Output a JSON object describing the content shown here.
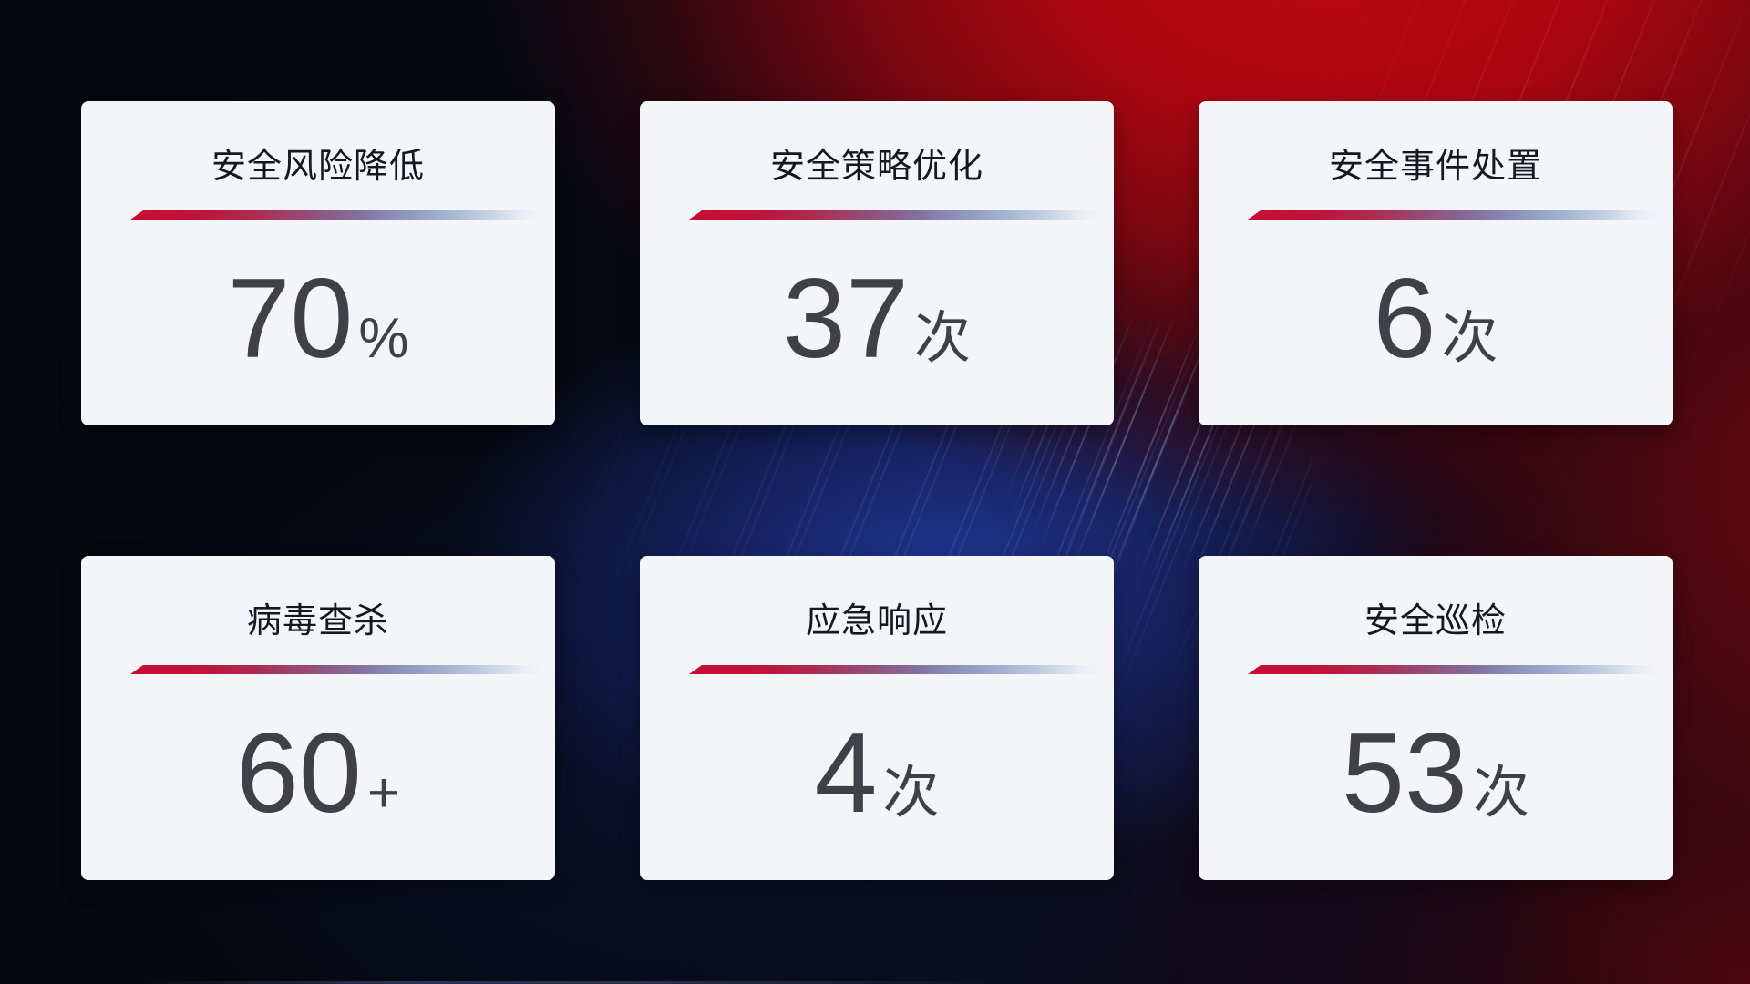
{
  "dashboard": {
    "cards": [
      {
        "title": "安全风险降低",
        "value": "70",
        "suffix": "%"
      },
      {
        "title": "安全策略优化",
        "value": "37",
        "suffix": "次"
      },
      {
        "title": "安全事件处置",
        "value": "6",
        "suffix": "次"
      },
      {
        "title": "病毒查杀",
        "value": "60",
        "suffix": "+"
      },
      {
        "title": "应急响应",
        "value": "4",
        "suffix": "次"
      },
      {
        "title": "安全巡检",
        "value": "53",
        "suffix": "次"
      }
    ],
    "colors": {
      "card_background": "#f4f5f9",
      "title_text": "#16181d",
      "value_text": "#3e4147",
      "divider_red": "#c60f33",
      "divider_blue": "#8f9cc5",
      "background_navy": "#070a16",
      "background_red": "#b00912",
      "background_blue_glow": "#1e3288"
    }
  }
}
